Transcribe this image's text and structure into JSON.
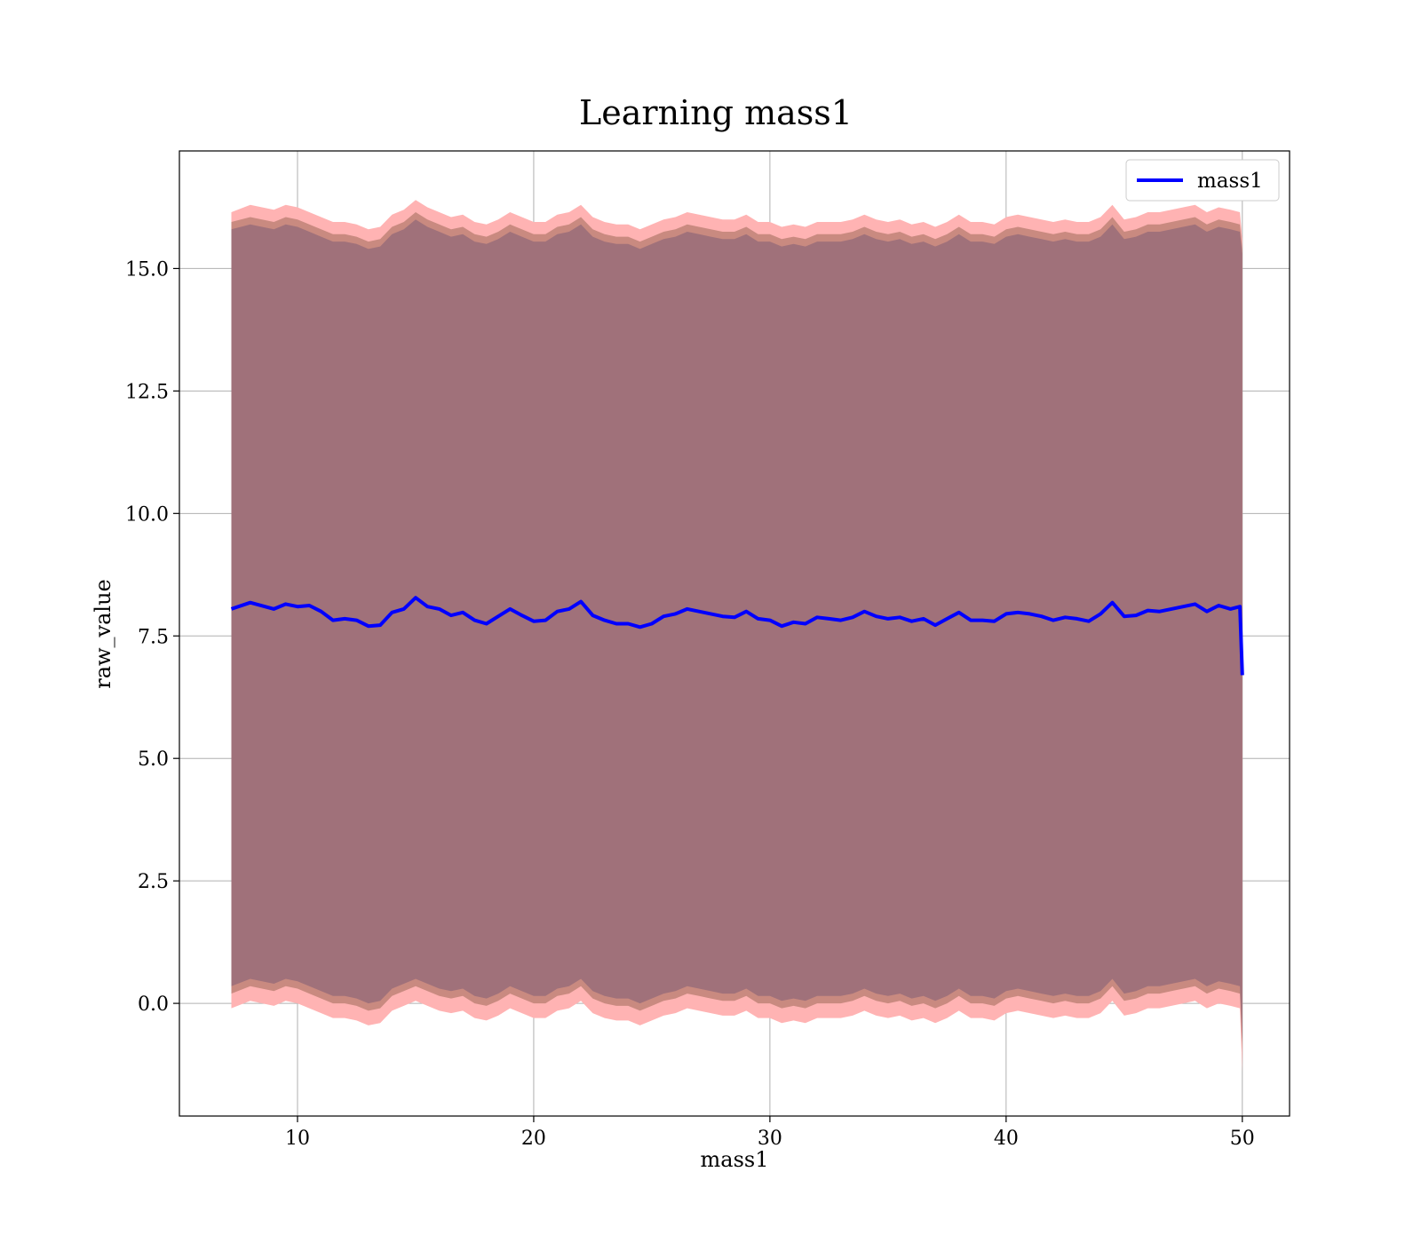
{
  "chart_data": {
    "type": "line",
    "title": "Learning mass1",
    "xlabel": "mass1",
    "ylabel": "raw_value",
    "xlim": [
      5,
      52
    ],
    "ylim": [
      -2.3,
      17.4
    ],
    "xticks": [
      10,
      20,
      30,
      40,
      50
    ],
    "xtick_labels": [
      "10",
      "20",
      "30",
      "40",
      "50"
    ],
    "yticks": [
      0.0,
      2.5,
      5.0,
      7.5,
      10.0,
      12.5,
      15.0
    ],
    "ytick_labels": [
      "0.0",
      "2.5",
      "5.0",
      "7.5",
      "10.0",
      "12.5",
      "15.0"
    ],
    "grid": true,
    "legend": {
      "placement": "top-right",
      "entries": [
        "mass1"
      ]
    },
    "colors": {
      "line": "#0000ff",
      "band_outer": "#ffb3b3",
      "band_middle": "#c98a80",
      "band_inner": "#a0717a"
    },
    "series": [
      {
        "name": "mass1",
        "x": [
          7.2,
          8.0,
          9.0,
          9.5,
          10.0,
          10.5,
          11.0,
          11.5,
          12.0,
          12.5,
          13.0,
          13.5,
          14.0,
          14.5,
          15.0,
          15.5,
          16.0,
          16.5,
          17.0,
          17.5,
          18.0,
          18.5,
          19.0,
          19.5,
          20.0,
          20.5,
          21.0,
          21.5,
          22.0,
          22.5,
          23.0,
          23.5,
          24.0,
          24.5,
          25.0,
          25.5,
          26.0,
          26.5,
          27.0,
          27.5,
          28.0,
          28.5,
          29.0,
          29.5,
          30.0,
          30.5,
          31.0,
          31.5,
          32.0,
          32.5,
          33.0,
          33.5,
          34.0,
          34.5,
          35.0,
          35.5,
          36.0,
          36.5,
          37.0,
          37.5,
          38.0,
          38.5,
          39.0,
          39.5,
          40.0,
          40.5,
          41.0,
          41.5,
          42.0,
          42.5,
          43.0,
          43.5,
          44.0,
          44.5,
          45.0,
          45.5,
          46.0,
          46.5,
          47.0,
          47.5,
          48.0,
          48.5,
          49.0,
          49.5,
          49.9,
          50.0
        ],
        "mean": [
          8.05,
          8.18,
          8.05,
          8.15,
          8.1,
          8.12,
          8.0,
          7.82,
          7.85,
          7.82,
          7.7,
          7.72,
          7.98,
          8.05,
          8.28,
          8.1,
          8.05,
          7.92,
          7.98,
          7.82,
          7.75,
          7.9,
          8.05,
          7.92,
          7.8,
          7.82,
          8.0,
          8.05,
          8.2,
          7.92,
          7.82,
          7.75,
          7.75,
          7.68,
          7.75,
          7.9,
          7.95,
          8.05,
          8.0,
          7.95,
          7.9,
          7.88,
          8.0,
          7.85,
          7.82,
          7.7,
          7.78,
          7.75,
          7.88,
          7.85,
          7.82,
          7.88,
          8.0,
          7.9,
          7.85,
          7.88,
          7.8,
          7.85,
          7.72,
          7.85,
          7.98,
          7.82,
          7.82,
          7.8,
          7.95,
          7.98,
          7.95,
          7.9,
          7.82,
          7.88,
          7.85,
          7.8,
          7.95,
          8.18,
          7.9,
          7.92,
          8.02,
          8.0,
          8.05,
          8.1,
          8.15,
          8.0,
          8.12,
          8.05,
          8.1,
          6.7
        ],
        "band_outer_lower": [
          -0.1,
          0.05,
          -0.05,
          0.05,
          0.0,
          -0.1,
          -0.2,
          -0.3,
          -0.3,
          -0.35,
          -0.45,
          -0.4,
          -0.15,
          -0.05,
          0.05,
          -0.05,
          -0.15,
          -0.2,
          -0.15,
          -0.3,
          -0.35,
          -0.25,
          -0.1,
          -0.2,
          -0.3,
          -0.3,
          -0.15,
          -0.1,
          0.05,
          -0.2,
          -0.3,
          -0.35,
          -0.35,
          -0.45,
          -0.35,
          -0.25,
          -0.2,
          -0.1,
          -0.15,
          -0.2,
          -0.25,
          -0.25,
          -0.15,
          -0.3,
          -0.3,
          -0.4,
          -0.35,
          -0.4,
          -0.3,
          -0.3,
          -0.3,
          -0.25,
          -0.15,
          -0.25,
          -0.3,
          -0.25,
          -0.35,
          -0.3,
          -0.4,
          -0.3,
          -0.15,
          -0.3,
          -0.3,
          -0.35,
          -0.2,
          -0.15,
          -0.2,
          -0.25,
          -0.3,
          -0.25,
          -0.3,
          -0.3,
          -0.2,
          0.05,
          -0.25,
          -0.2,
          -0.1,
          -0.1,
          -0.05,
          0.0,
          0.05,
          -0.1,
          0.0,
          -0.05,
          -0.1,
          -1.4
        ],
        "band_outer_upper": [
          16.15,
          16.3,
          16.2,
          16.3,
          16.25,
          16.15,
          16.05,
          15.95,
          15.95,
          15.9,
          15.8,
          15.85,
          16.1,
          16.2,
          16.4,
          16.25,
          16.15,
          16.05,
          16.1,
          15.95,
          15.9,
          16.0,
          16.15,
          16.05,
          15.95,
          15.95,
          16.1,
          16.15,
          16.3,
          16.05,
          15.95,
          15.9,
          15.9,
          15.8,
          15.9,
          16.0,
          16.05,
          16.15,
          16.1,
          16.05,
          16.0,
          16.0,
          16.1,
          15.95,
          15.95,
          15.85,
          15.9,
          15.85,
          15.95,
          15.95,
          15.95,
          16.0,
          16.1,
          16.0,
          15.95,
          16.0,
          15.9,
          15.95,
          15.85,
          15.95,
          16.1,
          15.95,
          15.95,
          15.9,
          16.05,
          16.1,
          16.05,
          16.0,
          15.95,
          16.0,
          15.95,
          15.95,
          16.05,
          16.3,
          16.0,
          16.05,
          16.15,
          16.15,
          16.2,
          16.25,
          16.3,
          16.15,
          16.25,
          16.2,
          16.15,
          15.6
        ],
        "band_middle_lower": [
          0.2,
          0.35,
          0.25,
          0.35,
          0.3,
          0.2,
          0.1,
          0.0,
          0.0,
          -0.05,
          -0.15,
          -0.1,
          0.15,
          0.25,
          0.35,
          0.25,
          0.15,
          0.1,
          0.15,
          0.0,
          -0.05,
          0.05,
          0.2,
          0.1,
          0.0,
          0.0,
          0.15,
          0.2,
          0.35,
          0.1,
          0.0,
          -0.05,
          -0.05,
          -0.15,
          -0.05,
          0.05,
          0.1,
          0.2,
          0.15,
          0.1,
          0.05,
          0.05,
          0.15,
          0.0,
          0.0,
          -0.1,
          -0.05,
          -0.1,
          0.0,
          0.0,
          0.0,
          0.05,
          0.15,
          0.05,
          0.0,
          0.05,
          -0.05,
          0.0,
          -0.1,
          0.0,
          0.15,
          0.0,
          0.0,
          -0.05,
          0.1,
          0.15,
          0.1,
          0.05,
          0.0,
          0.05,
          0.0,
          0.0,
          0.1,
          0.35,
          0.05,
          0.1,
          0.2,
          0.2,
          0.25,
          0.3,
          0.35,
          0.2,
          0.3,
          0.25,
          0.2,
          -1.0
        ],
        "band_middle_upper": [
          15.95,
          16.05,
          15.95,
          16.05,
          16.0,
          15.9,
          15.8,
          15.7,
          15.7,
          15.65,
          15.55,
          15.6,
          15.85,
          15.95,
          16.15,
          16.0,
          15.9,
          15.8,
          15.85,
          15.7,
          15.65,
          15.75,
          15.9,
          15.8,
          15.7,
          15.7,
          15.85,
          15.9,
          16.05,
          15.8,
          15.7,
          15.65,
          15.65,
          15.55,
          15.65,
          15.75,
          15.8,
          15.9,
          15.85,
          15.8,
          15.75,
          15.75,
          15.85,
          15.7,
          15.7,
          15.6,
          15.65,
          15.6,
          15.7,
          15.7,
          15.7,
          15.75,
          15.85,
          15.75,
          15.7,
          15.75,
          15.65,
          15.7,
          15.6,
          15.7,
          15.85,
          15.7,
          15.7,
          15.65,
          15.8,
          15.85,
          15.8,
          15.75,
          15.7,
          15.75,
          15.7,
          15.7,
          15.8,
          16.05,
          15.75,
          15.8,
          15.9,
          15.9,
          15.95,
          16.0,
          16.05,
          15.9,
          16.0,
          15.95,
          15.9,
          15.4
        ],
        "band_inner_lower": [
          0.35,
          0.5,
          0.4,
          0.5,
          0.45,
          0.35,
          0.25,
          0.15,
          0.15,
          0.1,
          0.0,
          0.05,
          0.3,
          0.4,
          0.5,
          0.4,
          0.3,
          0.25,
          0.3,
          0.15,
          0.1,
          0.2,
          0.35,
          0.25,
          0.15,
          0.15,
          0.3,
          0.35,
          0.5,
          0.25,
          0.15,
          0.1,
          0.1,
          0.0,
          0.1,
          0.2,
          0.25,
          0.35,
          0.3,
          0.25,
          0.2,
          0.2,
          0.3,
          0.15,
          0.15,
          0.05,
          0.1,
          0.05,
          0.15,
          0.15,
          0.15,
          0.2,
          0.3,
          0.2,
          0.15,
          0.2,
          0.1,
          0.15,
          0.05,
          0.15,
          0.3,
          0.15,
          0.15,
          0.1,
          0.25,
          0.3,
          0.25,
          0.2,
          0.15,
          0.2,
          0.15,
          0.15,
          0.25,
          0.5,
          0.2,
          0.25,
          0.35,
          0.35,
          0.4,
          0.45,
          0.5,
          0.35,
          0.45,
          0.4,
          0.35,
          -0.8
        ],
        "band_inner_upper": [
          15.8,
          15.9,
          15.8,
          15.9,
          15.85,
          15.75,
          15.65,
          15.55,
          15.55,
          15.5,
          15.4,
          15.45,
          15.7,
          15.8,
          16.0,
          15.85,
          15.75,
          15.65,
          15.7,
          15.55,
          15.5,
          15.6,
          15.75,
          15.65,
          15.55,
          15.55,
          15.7,
          15.75,
          15.9,
          15.65,
          15.55,
          15.5,
          15.5,
          15.4,
          15.5,
          15.6,
          15.65,
          15.75,
          15.7,
          15.65,
          15.6,
          15.6,
          15.7,
          15.55,
          15.55,
          15.45,
          15.5,
          15.45,
          15.55,
          15.55,
          15.55,
          15.6,
          15.7,
          15.6,
          15.55,
          15.6,
          15.5,
          15.55,
          15.45,
          15.55,
          15.7,
          15.55,
          15.55,
          15.5,
          15.65,
          15.7,
          15.65,
          15.6,
          15.55,
          15.6,
          15.55,
          15.55,
          15.65,
          15.9,
          15.6,
          15.65,
          15.75,
          15.75,
          15.8,
          15.85,
          15.9,
          15.75,
          15.85,
          15.8,
          15.75,
          15.3
        ]
      }
    ]
  }
}
